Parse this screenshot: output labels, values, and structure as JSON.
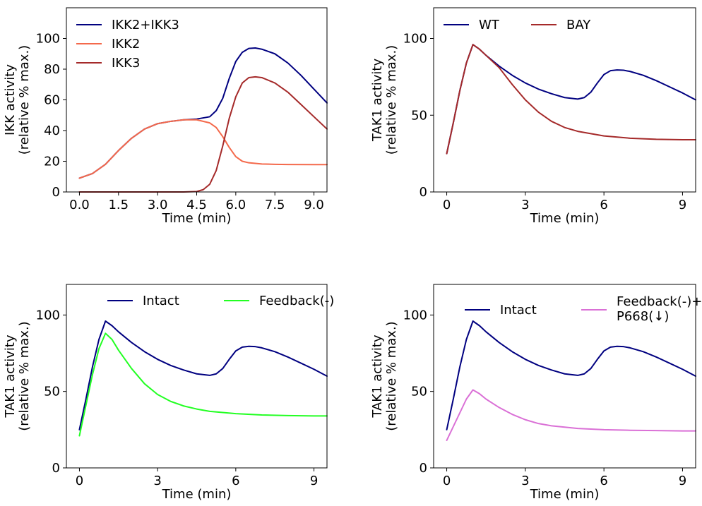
{
  "chart_data": [
    {
      "type": "line",
      "xlabel": "Time (min)",
      "ylabel": "IKK activity",
      "ylabel2": "(relative % max.)",
      "xlim": [
        -0.5,
        9.5
      ],
      "ylim": [
        0,
        120
      ],
      "xticks": [
        0.0,
        1.5,
        3.0,
        4.5,
        6.0,
        7.5,
        9.0
      ],
      "xtick_labels": [
        "0.0",
        "1.5",
        "3.0",
        "4.5",
        "6.0",
        "7.5",
        "9.0"
      ],
      "yticks": [
        0,
        20,
        40,
        60,
        80,
        100
      ],
      "ytick_labels": [
        "0",
        "20",
        "40",
        "60",
        "80",
        "100"
      ],
      "legend": "upper-left",
      "legend_cols": 1,
      "series": [
        {
          "name": "IKK2+IKK3",
          "color": "#000080",
          "x": [
            0,
            0.5,
            1,
            1.5,
            2,
            2.5,
            3,
            3.5,
            4,
            4.5,
            5,
            5.25,
            5.5,
            5.75,
            6,
            6.25,
            6.5,
            6.75,
            7,
            7.5,
            8,
            8.5,
            9,
            9.5
          ],
          "y": [
            9,
            12,
            18,
            27,
            35,
            41,
            44.5,
            46,
            47,
            47.5,
            49,
            53,
            61,
            74,
            85,
            91,
            93.5,
            93.8,
            93,
            90,
            84,
            76,
            67,
            58
          ]
        },
        {
          "name": "IKK2",
          "color": "#f4694b",
          "x": [
            0,
            0.5,
            1,
            1.5,
            2,
            2.5,
            3,
            3.5,
            4,
            4.5,
            5,
            5.25,
            5.5,
            5.75,
            6,
            6.25,
            6.5,
            7,
            7.5,
            8,
            9,
            9.5
          ],
          "y": [
            9,
            12,
            18,
            27,
            35,
            41,
            44.5,
            46,
            47,
            47,
            45,
            42,
            36,
            29,
            23,
            20,
            19,
            18.2,
            18,
            17.9,
            17.8,
            17.8
          ]
        },
        {
          "name": "IKK3",
          "color": "#a52a2a",
          "x": [
            0,
            1,
            2,
            3,
            4,
            4.5,
            4.75,
            5,
            5.25,
            5.5,
            5.75,
            6,
            6.25,
            6.5,
            6.75,
            7,
            7.5,
            8,
            8.5,
            9,
            9.5
          ],
          "y": [
            0,
            0,
            0,
            0,
            0,
            0.3,
            1.5,
            5,
            14,
            30,
            48,
            62,
            71,
            74.5,
            75,
            74.5,
            71,
            65,
            57,
            49,
            41
          ]
        }
      ]
    },
    {
      "type": "line",
      "xlabel": "Time (min)",
      "ylabel": "TAK1 activity",
      "ylabel2": "(relative % max.)",
      "xlim": [
        -0.5,
        9.5
      ],
      "ylim": [
        0,
        120
      ],
      "xticks": [
        0,
        3,
        6,
        9
      ],
      "xtick_labels": [
        "0",
        "3",
        "6",
        "9"
      ],
      "yticks": [
        0,
        50,
        100
      ],
      "ytick_labels": [
        "0",
        "50",
        "100"
      ],
      "legend": "top-left",
      "legend_cols": 2,
      "series": [
        {
          "name": "WT",
          "color": "#000080",
          "x": [
            0,
            0.25,
            0.5,
            0.75,
            1,
            1.25,
            1.5,
            2,
            2.5,
            3,
            3.5,
            4,
            4.5,
            5,
            5.25,
            5.5,
            5.75,
            6,
            6.25,
            6.5,
            6.75,
            7,
            7.5,
            8,
            8.5,
            9,
            9.5
          ],
          "y": [
            25,
            45,
            66,
            84,
            96,
            93,
            89,
            82,
            76,
            71,
            67,
            64,
            61.5,
            60.5,
            61.5,
            65,
            71,
            76.5,
            79,
            79.5,
            79.3,
            78.5,
            76,
            72.5,
            68.5,
            64.5,
            60
          ]
        },
        {
          "name": "BAY",
          "color": "#a52a2a",
          "x": [
            0,
            0.25,
            0.5,
            0.75,
            1,
            1.25,
            1.5,
            2,
            2.5,
            3,
            3.5,
            4,
            4.5,
            5,
            6,
            7,
            8,
            9,
            9.5
          ],
          "y": [
            25,
            45,
            66,
            84,
            96,
            93,
            89,
            81,
            70,
            60,
            52,
            46,
            42,
            39.5,
            36.5,
            35,
            34.3,
            34,
            34
          ]
        }
      ]
    },
    {
      "type": "line",
      "xlabel": "Time (min)",
      "ylabel": "TAK1 activity",
      "ylabel2": "(relative % max.)",
      "xlim": [
        -0.5,
        9.5
      ],
      "ylim": [
        0,
        120
      ],
      "xticks": [
        0,
        3,
        6,
        9
      ],
      "xtick_labels": [
        "0",
        "3",
        "6",
        "9"
      ],
      "yticks": [
        0,
        50,
        100
      ],
      "ytick_labels": [
        "0",
        "50",
        "100"
      ],
      "legend": "top-right",
      "legend_cols": 2,
      "series": [
        {
          "name": "Intact",
          "color": "#000080",
          "x": [
            0,
            0.25,
            0.5,
            0.75,
            1,
            1.25,
            1.5,
            2,
            2.5,
            3,
            3.5,
            4,
            4.5,
            5,
            5.25,
            5.5,
            5.75,
            6,
            6.25,
            6.5,
            6.75,
            7,
            7.5,
            8,
            8.5,
            9,
            9.5
          ],
          "y": [
            25,
            45,
            66,
            84,
            96,
            93,
            89,
            82,
            76,
            71,
            67,
            64,
            61.5,
            60.5,
            61.5,
            65,
            71,
            76.5,
            79,
            79.5,
            79.3,
            78.5,
            76,
            72.5,
            68.5,
            64.5,
            60
          ]
        },
        {
          "name": "Feedback(-)",
          "color": "#22ff22",
          "x": [
            0,
            0.25,
            0.5,
            0.75,
            1,
            1.25,
            1.5,
            2,
            2.5,
            3,
            3.5,
            4,
            4.5,
            5,
            6,
            7,
            8,
            9,
            9.5
          ],
          "y": [
            21,
            41,
            61,
            78,
            88,
            84,
            77,
            65,
            55,
            48,
            43.5,
            40.5,
            38.5,
            37,
            35.5,
            34.6,
            34.2,
            34,
            34
          ]
        }
      ]
    },
    {
      "type": "line",
      "xlabel": "Time (min)",
      "ylabel": "TAK1 activity",
      "ylabel2": "(relative % max.)",
      "xlim": [
        -0.5,
        9.5
      ],
      "ylim": [
        0,
        120
      ],
      "xticks": [
        0,
        3,
        6,
        9
      ],
      "xtick_labels": [
        "0",
        "3",
        "6",
        "9"
      ],
      "yticks": [
        0,
        50,
        100
      ],
      "ytick_labels": [
        "0",
        "50",
        "100"
      ],
      "legend": "top-right",
      "legend_cols": 2,
      "series": [
        {
          "name": "Intact",
          "color": "#000080",
          "x": [
            0,
            0.25,
            0.5,
            0.75,
            1,
            1.25,
            1.5,
            2,
            2.5,
            3,
            3.5,
            4,
            4.5,
            5,
            5.25,
            5.5,
            5.75,
            6,
            6.25,
            6.5,
            6.75,
            7,
            7.5,
            8,
            8.5,
            9,
            9.5
          ],
          "y": [
            25,
            45,
            66,
            84,
            96,
            93,
            89,
            82,
            76,
            71,
            67,
            64,
            61.5,
            60.5,
            61.5,
            65,
            71,
            76.5,
            79,
            79.5,
            79.3,
            78.5,
            76,
            72.5,
            68.5,
            64.5,
            60
          ]
        },
        {
          "name": "Feedback(-)+",
          "name2": "P668(↓)",
          "color": "#da70d6",
          "x": [
            0,
            0.25,
            0.5,
            0.75,
            1,
            1.25,
            1.5,
            2,
            2.5,
            3,
            3.5,
            4,
            5,
            6,
            7,
            8,
            9,
            9.5
          ],
          "y": [
            18,
            27,
            36,
            45,
            51,
            48.5,
            45,
            39.5,
            35,
            31.5,
            29,
            27.5,
            25.8,
            25,
            24.6,
            24.4,
            24.2,
            24.2
          ]
        }
      ]
    }
  ]
}
